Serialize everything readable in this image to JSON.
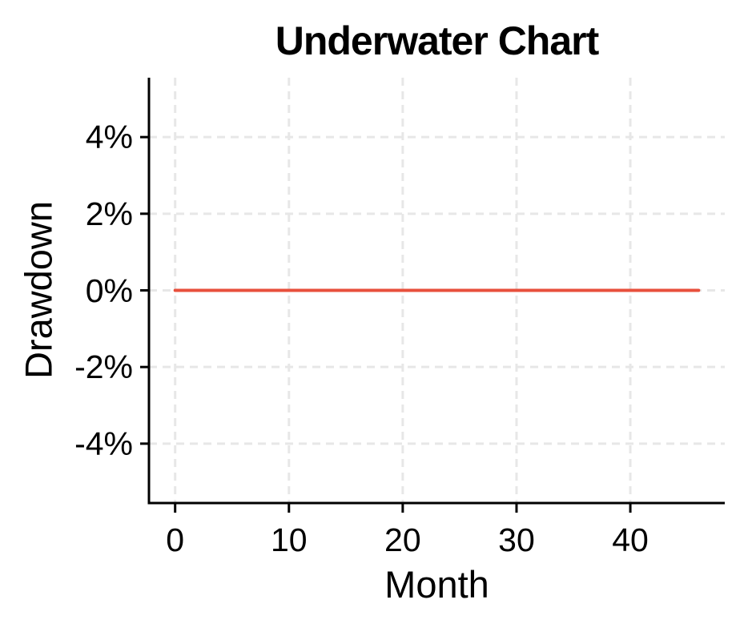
{
  "title": "Underwater Chart",
  "colors": {
    "line": "#E8503C",
    "grid": "#E7E7E7",
    "axis": "#000000",
    "text": "#000000",
    "background": "#FFFFFF"
  },
  "chart_data": {
    "type": "line",
    "title": "Underwater Chart",
    "xlabel": "Month",
    "ylabel": "Drawdown",
    "x_ticks": [
      0,
      10,
      20,
      30,
      40
    ],
    "x_tick_labels": [
      "0",
      "10",
      "20",
      "30",
      "40"
    ],
    "y_ticks": [
      4,
      2,
      0,
      -2,
      -4
    ],
    "y_tick_labels": [
      "4%",
      "2%",
      "0%",
      "-2%",
      "-4%"
    ],
    "xlim": [
      -2.3,
      48.3
    ],
    "ylim": [
      -5.55,
      5.55
    ],
    "grid": "dashed gridlines on both axes",
    "legend": "none",
    "series": [
      {
        "name": "Drawdown",
        "color": "#E8503C",
        "x": [
          0,
          1,
          2,
          3,
          4,
          5,
          6,
          7,
          8,
          9,
          10,
          11,
          12,
          13,
          14,
          15,
          16,
          17,
          18,
          19,
          20,
          21,
          22,
          23,
          24,
          25,
          26,
          27,
          28,
          29,
          30,
          31,
          32,
          33,
          34,
          35,
          36,
          37,
          38,
          39,
          40,
          41,
          42,
          43,
          44,
          45,
          46
        ],
        "y": [
          0,
          0,
          0,
          0,
          0,
          0,
          0,
          0,
          0,
          0,
          0,
          0,
          0,
          0,
          0,
          0,
          0,
          0,
          0,
          0,
          0,
          0,
          0,
          0,
          0,
          0,
          0,
          0,
          0,
          0,
          0,
          0,
          0,
          0,
          0,
          0,
          0,
          0,
          0,
          0,
          0,
          0,
          0,
          0,
          0,
          0,
          0
        ]
      }
    ]
  }
}
